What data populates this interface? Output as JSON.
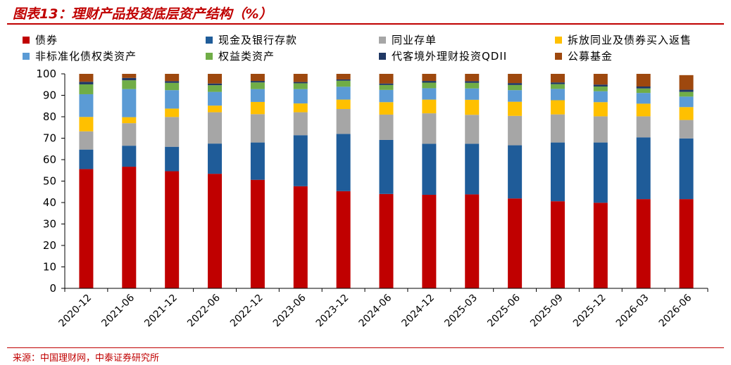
{
  "header": {
    "title": "图表13：理财产品投资底层资产结构（%）"
  },
  "footer": {
    "source": "来源：中国理财网，中泰证券研究所"
  },
  "chart_data": {
    "type": "bar",
    "stacked": true,
    "title": "",
    "xlabel": "",
    "ylabel": "",
    "ylim": [
      0,
      100
    ],
    "yticks": [
      0,
      10,
      20,
      30,
      40,
      50,
      60,
      70,
      80,
      90,
      100
    ],
    "grid": false,
    "legend_position": "top",
    "categories": [
      "2020-12",
      "2021-06",
      "2021-12",
      "2022-06",
      "2022-12",
      "2023-06",
      "2023-12",
      "2024-06",
      "2024-12",
      "2025-03",
      "2025-06",
      "2025-09",
      "2025-12",
      "2026-03",
      "2026-06"
    ],
    "series": [
      {
        "name": "债券",
        "color": "#c00000",
        "values": [
          55.6,
          56.7,
          54.6,
          53.4,
          50.6,
          47.6,
          45.3,
          44.0,
          43.6,
          43.8,
          41.9,
          40.6,
          39.9,
          41.6,
          41.6
        ]
      },
      {
        "name": "现金及银行存款",
        "color": "#1f5c99",
        "values": [
          9.1,
          9.8,
          11.4,
          14.1,
          17.4,
          23.8,
          26.7,
          25.2,
          23.8,
          23.6,
          24.8,
          27.4,
          28.1,
          28.8,
          28.3
        ]
      },
      {
        "name": "同业存单",
        "color": "#a6a6a6",
        "values": [
          8.5,
          10.5,
          13.9,
          14.6,
          13.2,
          10.7,
          11.6,
          11.8,
          14.2,
          13.5,
          13.7,
          13.1,
          12.2,
          9.8,
          8.6
        ]
      },
      {
        "name": "拆放同业及债券买入返售",
        "color": "#ffc000",
        "values": [
          6.7,
          2.8,
          3.9,
          3.1,
          5.7,
          4.1,
          4.4,
          5.8,
          6.4,
          7.0,
          6.6,
          6.6,
          6.6,
          5.9,
          6.0
        ]
      },
      {
        "name": "非标准化债权类资产",
        "color": "#5b9bd5",
        "values": [
          10.6,
          13.1,
          8.6,
          6.4,
          6.0,
          6.7,
          6.0,
          5.7,
          5.3,
          5.3,
          5.4,
          5.3,
          5.1,
          5.0,
          4.9
        ]
      },
      {
        "name": "权益类资产",
        "color": "#70ad47",
        "values": [
          4.6,
          4.1,
          3.4,
          3.1,
          3.1,
          2.7,
          2.8,
          2.3,
          2.6,
          2.6,
          2.4,
          2.2,
          2.2,
          2.1,
          2.2
        ]
      },
      {
        "name": "代客境外理财投资QDII",
        "color": "#203864",
        "values": [
          1.2,
          1.1,
          0.8,
          0.8,
          0.7,
          0.6,
          0.6,
          0.7,
          0.8,
          0.8,
          0.9,
          0.8,
          0.9,
          0.9,
          1.0
        ]
      },
      {
        "name": "公募基金",
        "color": "#9e480e",
        "values": [
          3.7,
          1.9,
          3.4,
          4.5,
          3.3,
          3.8,
          2.6,
          4.5,
          3.3,
          3.4,
          4.3,
          4.0,
          5.0,
          5.9,
          6.8
        ]
      }
    ]
  }
}
